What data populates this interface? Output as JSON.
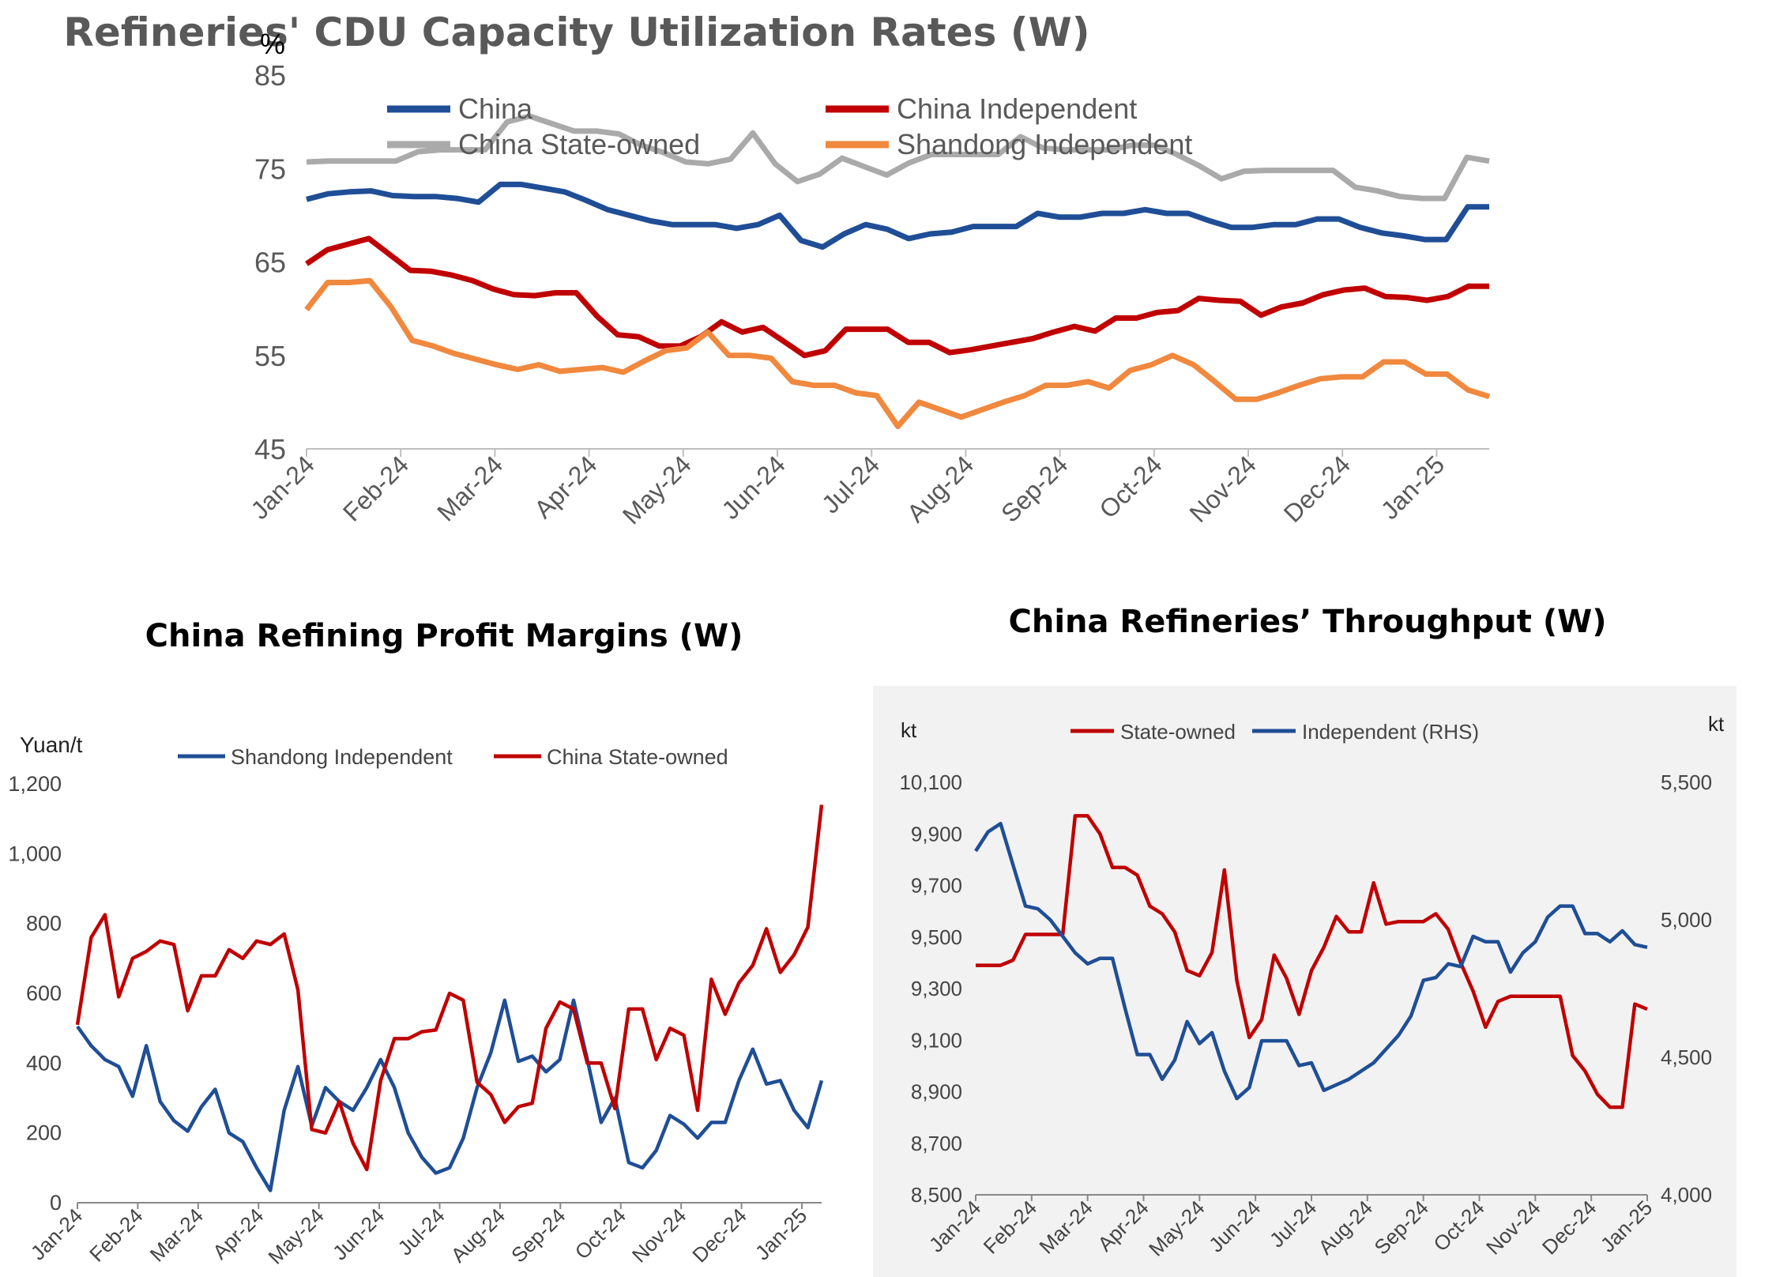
{
  "chart_data": [
    {
      "type": "line",
      "title": "Refineries' CDU Capacity Utilization Rates (W)",
      "ylabel": "%",
      "ylim": [
        45,
        85
      ],
      "yticks": [
        "45",
        "55",
        "65",
        "75",
        "85"
      ],
      "xticks": [
        "Jan-24",
        "Feb-24",
        "Mar-24",
        "Apr-24",
        "May-24",
        "Jun-24",
        "Jul-24",
        "Aug-24",
        "Sep-24",
        "Oct-24",
        "Nov-24",
        "Dec-24",
        "Jan-25"
      ],
      "legend": "top",
      "series": [
        {
          "name": "China",
          "color": "#1f4e96",
          "values": [
            71.7,
            72.3,
            72.5,
            72.6,
            72.1,
            72.0,
            72.0,
            71.8,
            71.4,
            73.3,
            73.3,
            72.9,
            72.5,
            71.6,
            70.6,
            70.0,
            69.4,
            69.0,
            69.0,
            69.0,
            68.6,
            69.0,
            70.0,
            67.3,
            66.6,
            68.0,
            69.0,
            68.5,
            67.5,
            68.0,
            68.2,
            68.8,
            68.8,
            68.8,
            70.2,
            69.8,
            69.8,
            70.2,
            70.2,
            70.6,
            70.2,
            70.2,
            69.4,
            68.7,
            68.7,
            69.0,
            69.0,
            69.6,
            69.6,
            68.7,
            68.1,
            67.8,
            67.4,
            67.4,
            70.9,
            70.9
          ]
        },
        {
          "name": "China State-owned",
          "color": "#aaaaaa",
          "values": [
            75.7,
            75.8,
            75.8,
            75.8,
            75.8,
            76.8,
            77.0,
            77.0,
            77.0,
            80.0,
            80.6,
            79.8,
            79.0,
            79.0,
            78.7,
            77.5,
            76.7,
            75.7,
            75.5,
            76.0,
            78.8,
            75.5,
            73.6,
            74.4,
            76.1,
            75.2,
            74.3,
            75.6,
            76.5,
            76.5,
            76.5,
            76.5,
            78.4,
            77.2,
            77.0,
            77.0,
            77.0,
            77.5,
            77.5,
            76.5,
            75.3,
            73.9,
            74.7,
            74.8,
            74.8,
            74.8,
            74.8,
            73.0,
            72.6,
            72.0,
            71.8,
            71.8,
            76.2,
            75.8
          ]
        },
        {
          "name": "China Independent",
          "color": "#c00000",
          "values": [
            64.8,
            66.3,
            66.9,
            67.5,
            65.8,
            64.1,
            64.0,
            63.6,
            63.0,
            62.1,
            61.5,
            61.4,
            61.7,
            61.7,
            59.2,
            57.2,
            57.0,
            56.0,
            56.0,
            57.0,
            58.6,
            57.5,
            58.0,
            56.5,
            55.0,
            55.5,
            57.8,
            57.8,
            57.8,
            56.4,
            56.4,
            55.3,
            55.6,
            56.0,
            56.4,
            56.8,
            57.5,
            58.1,
            57.6,
            59.0,
            59.0,
            59.6,
            59.8,
            61.1,
            60.9,
            60.8,
            59.3,
            60.2,
            60.6,
            61.5,
            62.0,
            62.2,
            61.3,
            61.2,
            60.9,
            61.3,
            62.4,
            62.4
          ]
        },
        {
          "name": "Shandong Independent",
          "color": "#f0883e",
          "values": [
            59.9,
            62.8,
            62.8,
            63.0,
            60.2,
            56.6,
            56.0,
            55.2,
            54.6,
            54.0,
            53.5,
            54.0,
            53.3,
            53.5,
            53.7,
            53.2,
            54.4,
            55.5,
            55.8,
            57.5,
            55.0,
            55.0,
            54.7,
            52.2,
            51.8,
            51.8,
            51.0,
            50.7,
            47.4,
            50.0,
            49.2,
            48.4,
            49.2,
            50.0,
            50.7,
            51.8,
            51.8,
            52.2,
            51.5,
            53.4,
            54.0,
            55.0,
            54.0,
            52.2,
            50.3,
            50.3,
            51.0,
            51.8,
            52.5,
            52.7,
            52.7,
            54.3,
            54.3,
            53.0,
            53.0,
            51.3,
            50.6
          ]
        }
      ]
    },
    {
      "type": "line",
      "title": "China Refining Profit Margins (W)",
      "ylabel": "Yuan/t",
      "ylim": [
        0,
        1200
      ],
      "yticks": [
        "0",
        "200",
        "400",
        "600",
        "800",
        "1,000",
        "1,200"
      ],
      "xticks": [
        "Jan-24",
        "Feb-24",
        "Mar-24",
        "Apr-24",
        "May-24",
        "Jun-24",
        "Jul-24",
        "Aug-24",
        "Sep-24",
        "Oct-24",
        "Nov-24",
        "Dec-24",
        "Jan-25"
      ],
      "legend": "top",
      "series": [
        {
          "name": "Shandong Independent",
          "color": "#1f4e96",
          "values": [
            505,
            450,
            410,
            390,
            305,
            450,
            290,
            235,
            205,
            275,
            325,
            200,
            175,
            100,
            35,
            265,
            390,
            220,
            330,
            290,
            265,
            330,
            410,
            330,
            200,
            130,
            85,
            100,
            185,
            330,
            430,
            580,
            405,
            420,
            375,
            410,
            580,
            410,
            230,
            300,
            115,
            100,
            150,
            250,
            225,
            185,
            230,
            230,
            350,
            440,
            340,
            350,
            265,
            215,
            350
          ]
        },
        {
          "name": "China State-owned",
          "color": "#c00000",
          "values": [
            510,
            760,
            825,
            590,
            700,
            720,
            750,
            740,
            550,
            650,
            650,
            725,
            700,
            750,
            740,
            770,
            610,
            210,
            200,
            290,
            170,
            95,
            350,
            470,
            470,
            490,
            495,
            600,
            580,
            345,
            310,
            230,
            275,
            285,
            500,
            575,
            555,
            400,
            400,
            270,
            555,
            555,
            410,
            500,
            480,
            265,
            640,
            540,
            630,
            680,
            785,
            660,
            710,
            790,
            1140
          ]
        }
      ]
    },
    {
      "type": "line",
      "title": "China Refineries’ Throughput (W)",
      "ylabel": "kt",
      "ylabel_right": "kt",
      "ylim": [
        8500,
        10100
      ],
      "ylim_right": [
        4000,
        5500
      ],
      "yticks": [
        "8,500",
        "8,700",
        "8,900",
        "9,100",
        "9,300",
        "9,500",
        "9,700",
        "9,900",
        "10,100"
      ],
      "yticks_right": [
        "4,000",
        "4,500",
        "5,000",
        "5,500"
      ],
      "xticks": [
        "Jan-24",
        "Feb-24",
        "Mar-24",
        "Apr-24",
        "May-24",
        "Jun-24",
        "Jul-24",
        "Aug-24",
        "Sep-24",
        "Oct-24",
        "Nov-24",
        "Dec-24",
        "Jan-25"
      ],
      "legend": "top",
      "series": [
        {
          "name": "State-owned",
          "color": "#c00000",
          "axis": "left",
          "values": [
            9390,
            9390,
            9390,
            9410,
            9510,
            9510,
            9510,
            9510,
            9970,
            9970,
            9900,
            9770,
            9770,
            9740,
            9620,
            9590,
            9520,
            9370,
            9350,
            9440,
            9760,
            9330,
            9110,
            9180,
            9430,
            9340,
            9200,
            9370,
            9460,
            9580,
            9520,
            9520,
            9710,
            9550,
            9560,
            9560,
            9560,
            9590,
            9530,
            9400,
            9290,
            9150,
            9250,
            9270,
            9270,
            9270,
            9270,
            9270,
            9040,
            8980,
            8890,
            8840,
            8840,
            9240,
            9220
          ]
        },
        {
          "name": "Independent (RHS)",
          "color": "#1f4e96",
          "axis": "right",
          "values": [
            5250,
            5320,
            5350,
            5200,
            5050,
            5040,
            5000,
            4940,
            4880,
            4840,
            4860,
            4860,
            4680,
            4510,
            4510,
            4420,
            4490,
            4630,
            4550,
            4590,
            4450,
            4350,
            4390,
            4560,
            4560,
            4560,
            4470,
            4480,
            4380,
            4400,
            4420,
            4450,
            4480,
            4530,
            4580,
            4650,
            4780,
            4790,
            4840,
            4830,
            4940,
            4920,
            4920,
            4810,
            4880,
            4920,
            5010,
            5050,
            5050,
            4950,
            4950,
            4920,
            4960,
            4910,
            4900
          ]
        }
      ]
    }
  ]
}
